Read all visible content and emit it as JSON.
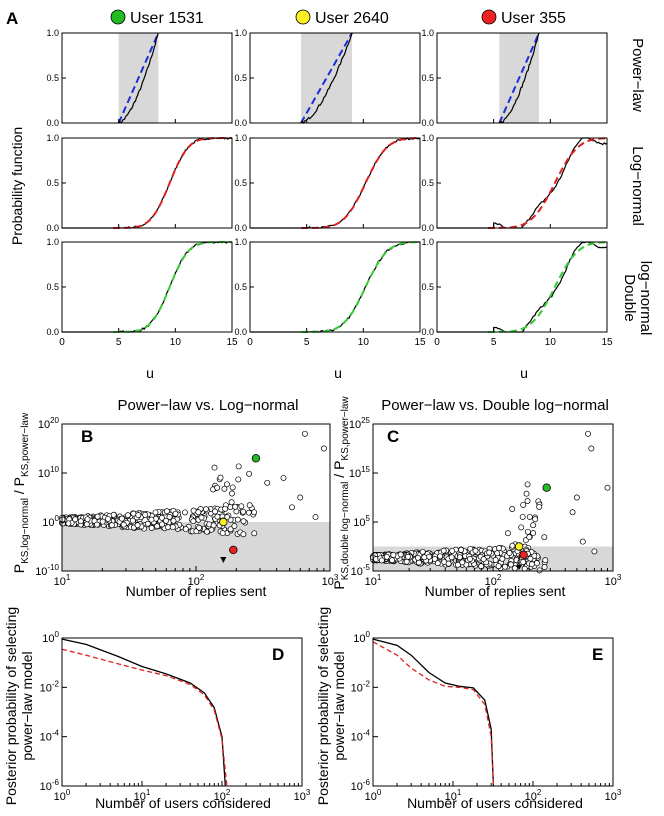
{
  "figure": {
    "panel_labels": {
      "A": "A",
      "B": "B",
      "C": "C",
      "D": "D",
      "E": "E"
    },
    "users": [
      {
        "label": "User 1531",
        "color": "#22bb22"
      },
      {
        "label": "User 2640",
        "color": "#ffee22"
      },
      {
        "label": "User 355",
        "color": "#ee2222"
      }
    ],
    "row_labels": [
      "Power−law",
      "Log−normal",
      "Double",
      "log−normal"
    ],
    "ylabel_A": "Probability function",
    "xlabel_A": "u",
    "B_title": "Power−law vs. Log−normal",
    "C_title": "Power−law vs. Double log−normal",
    "BC_xlabel": "Number of replies sent",
    "DE_xlabel": "Number of users considered",
    "DE_ylabel_line1": "Posterior probability of selecting",
    "DE_ylabel_line2": "power−law model",
    "B_ylabel_num": "P",
    "B_ylabel_num_sub": "KS,log−normal",
    "B_ylabel_sep": " / P",
    "B_ylabel_den_sub": "KS,power−law",
    "C_ylabel_num": "P",
    "C_ylabel_num_sub": "KS,double log−normal",
    "C_ylabel_sep": " / P",
    "C_ylabel_den_sub": "KS,power−law"
  },
  "chart_data": [
    {
      "panel": "A",
      "type": "line",
      "xlim": [
        0,
        15
      ],
      "ylim": [
        0,
        1
      ],
      "xticks": [
        "0",
        "5",
        "10",
        "15"
      ],
      "yticks": [
        "0.0",
        "0.5",
        "1.0"
      ],
      "shaded_ranges_u": [
        [
          5.0,
          8.5
        ],
        [
          4.5,
          9.0
        ],
        [
          5.5,
          9.0
        ]
      ],
      "colors": {
        "power": "#1a2fd6",
        "lognormal": "#e02020",
        "double": "#33cc33",
        "empirical": "#000000"
      }
    },
    {
      "panel": "B",
      "type": "scatter",
      "xscale": "log",
      "yscale": "log",
      "xlim": [
        10,
        1000
      ],
      "ylim": [
        1e-10,
        1e+20
      ],
      "xticks": [
        "10",
        "100",
        "1000"
      ],
      "yticks": [
        "10^-10",
        "10^0",
        "10^10",
        "10^20"
      ],
      "threshold": 1,
      "highlighted": [
        {
          "x": 280,
          "y": 10000000000000.0,
          "color": "#22bb22"
        },
        {
          "x": 160,
          "y": 1.0,
          "color": "#ffee22"
        },
        {
          "x": 190,
          "y": 2e-06,
          "color": "#ee2222"
        }
      ],
      "arrow_x": 160
    },
    {
      "panel": "C",
      "type": "scatter",
      "xscale": "log",
      "yscale": "log",
      "xlim": [
        10,
        1000
      ],
      "ylim": [
        1e-05,
        1e+25
      ],
      "xticks": [
        "10",
        "100",
        "1000"
      ],
      "yticks": [
        "10^-5",
        "10^5",
        "10^15",
        "10^25"
      ],
      "threshold": 1,
      "highlighted": [
        {
          "x": 280,
          "y": 1000000000000.0,
          "color": "#22bb22"
        },
        {
          "x": 165,
          "y": 1.0,
          "color": "#ffee22"
        },
        {
          "x": 180,
          "y": 0.02,
          "color": "#ee2222"
        }
      ],
      "arrow_x": 165
    },
    {
      "panel": "D",
      "type": "line",
      "xscale": "log",
      "yscale": "log",
      "xlim": [
        1,
        1000
      ],
      "ylim": [
        1e-06,
        1
      ],
      "xticks": [
        "10^0",
        "10^1",
        "10^2",
        "10^3"
      ],
      "yticks": [
        "10^-6",
        "10^-4",
        "10^-2",
        "10^0"
      ],
      "series": [
        {
          "name": "black",
          "color": "#000000",
          "style": "solid",
          "points": [
            [
              1,
              0.9
            ],
            [
              2,
              0.55
            ],
            [
              5,
              0.18
            ],
            [
              10,
              0.07
            ],
            [
              20,
              0.035
            ],
            [
              40,
              0.015
            ],
            [
              60,
              0.006
            ],
            [
              80,
              0.0015
            ],
            [
              100,
              0.0001
            ],
            [
              110,
              1e-06
            ]
          ]
        },
        {
          "name": "red",
          "color": "#e02020",
          "style": "dashed",
          "points": [
            [
              1,
              0.35
            ],
            [
              2,
              0.2
            ],
            [
              5,
              0.09
            ],
            [
              10,
              0.05
            ],
            [
              20,
              0.03
            ],
            [
              40,
              0.013
            ],
            [
              60,
              0.005
            ],
            [
              80,
              0.0012
            ],
            [
              100,
              8e-05
            ],
            [
              115,
              1e-06
            ]
          ]
        }
      ]
    },
    {
      "panel": "E",
      "type": "line",
      "xscale": "log",
      "yscale": "log",
      "xlim": [
        1,
        1000
      ],
      "ylim": [
        1e-06,
        1
      ],
      "xticks": [
        "10^0",
        "10^1",
        "10^2",
        "10^3"
      ],
      "yticks": [
        "10^-6",
        "10^-4",
        "10^-2",
        "10^0"
      ],
      "series": [
        {
          "name": "black",
          "color": "#000000",
          "style": "solid",
          "points": [
            [
              1,
              0.9
            ],
            [
              2,
              0.5
            ],
            [
              3,
              0.2
            ],
            [
              5,
              0.04
            ],
            [
              8,
              0.015
            ],
            [
              12,
              0.011
            ],
            [
              18,
              0.0095
            ],
            [
              25,
              0.003
            ],
            [
              30,
              0.0002
            ],
            [
              32,
              1e-06
            ]
          ]
        },
        {
          "name": "red",
          "color": "#e02020",
          "style": "dashed",
          "points": [
            [
              1,
              0.7
            ],
            [
              2,
              0.2
            ],
            [
              3,
              0.06
            ],
            [
              5,
              0.02
            ],
            [
              8,
              0.011
            ],
            [
              12,
              0.01
            ],
            [
              18,
              0.008
            ],
            [
              25,
              0.002
            ],
            [
              30,
              0.0001
            ],
            [
              32,
              1e-06
            ]
          ]
        }
      ]
    }
  ]
}
